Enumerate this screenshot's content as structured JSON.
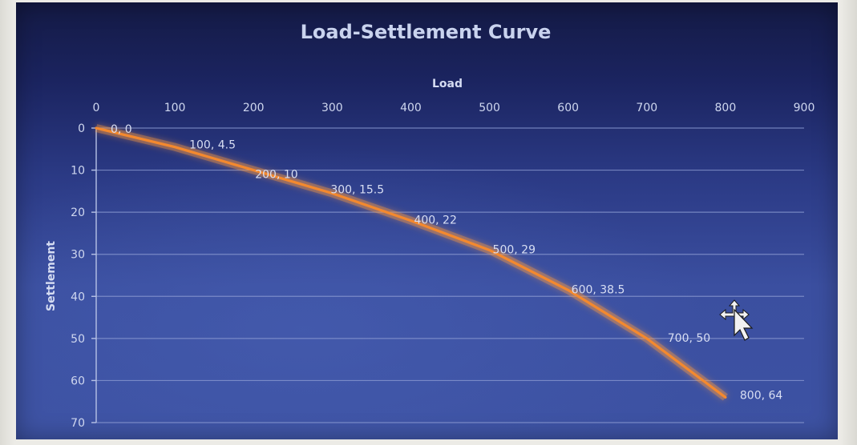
{
  "chart_data": {
    "type": "line",
    "title": "Load-Settlement Curve",
    "xlabel": "Load",
    "ylabel": "Settlement",
    "x_axis_position": "top",
    "y_axis_reversed": true,
    "xlim": [
      0,
      900
    ],
    "ylim": [
      0,
      70
    ],
    "x_ticks": [
      0,
      100,
      200,
      300,
      400,
      500,
      600,
      700,
      800,
      900
    ],
    "y_ticks": [
      0,
      10,
      20,
      30,
      40,
      50,
      60,
      70
    ],
    "grid": {
      "horizontal": true,
      "vertical": false
    },
    "legend": "none",
    "series": [
      {
        "name": "Settlement",
        "color": "#f4892e",
        "x": [
          0,
          100,
          200,
          300,
          400,
          500,
          600,
          700,
          800
        ],
        "y": [
          0,
          4.5,
          10,
          15.5,
          22,
          29,
          38.5,
          50,
          64
        ],
        "data_labels": [
          "0, 0",
          "100, 4.5",
          "200, 10",
          "300, 15.5",
          "400, 22",
          "500, 29",
          "600, 38.5",
          "700, 50",
          "800, 64"
        ]
      }
    ]
  },
  "colors": {
    "background_top": "#141a45",
    "background_bottom": "#3d52a3",
    "line": "#f4892e",
    "line_glow": "#ff9a3c",
    "text": "#cfd7ef",
    "gridline": "#8c9bd2"
  },
  "cursor": {
    "type": "move-cursor"
  }
}
